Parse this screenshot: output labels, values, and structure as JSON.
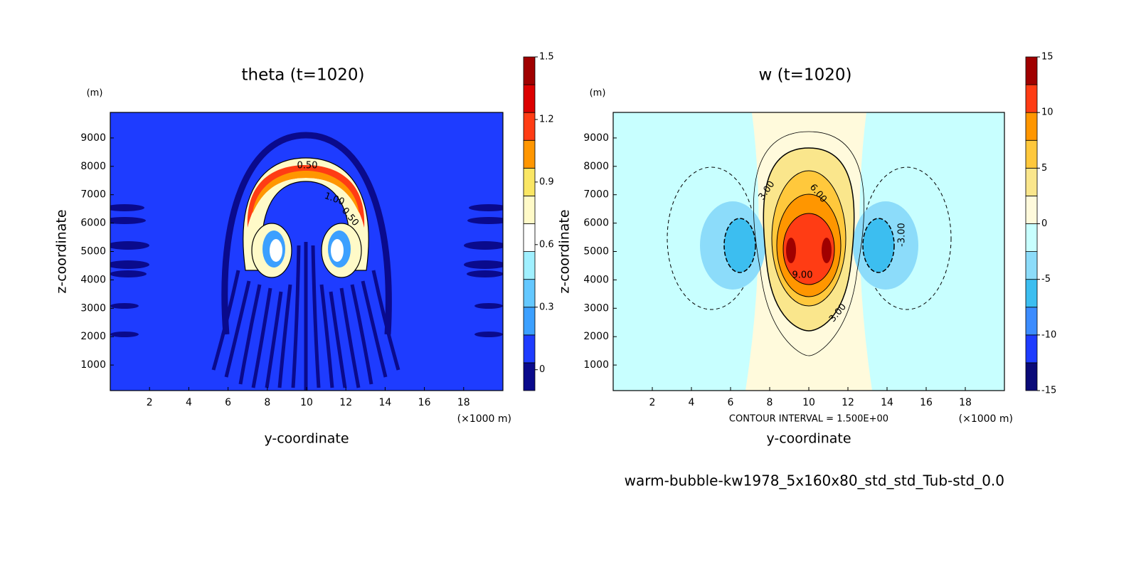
{
  "chart_data": [
    {
      "type": "contour",
      "title": "theta (t=1020)",
      "y_unit": "(m)",
      "x_unit": "(×1000 m)",
      "xlabel": "y-coordinate",
      "ylabel": "z-coordinate",
      "xlim": [
        0,
        20
      ],
      "xticks": [
        2,
        4,
        6,
        8,
        10,
        12,
        14,
        16,
        18
      ],
      "ylim": [
        100,
        9900
      ],
      "yticks": [
        1000,
        2000,
        3000,
        4000,
        5000,
        6000,
        7000,
        8000,
        9000
      ],
      "colorbar": {
        "lim": [
          -0.1,
          1.5
        ],
        "ticks": [
          0,
          0.3,
          0.6,
          0.9,
          1.2,
          1.5
        ],
        "colors": [
          "#0a0a8c",
          "#1e3cff",
          "#3ca0ff",
          "#64c8ff",
          "#a0f0ff",
          "#ffffff",
          "#fffac8",
          "#fae664",
          "#ff9600",
          "#ff3c14",
          "#dc0000",
          "#a00000"
        ]
      },
      "contour_labels": [
        "0.50",
        "1.00",
        "0.50"
      ]
    },
    {
      "type": "contour",
      "title": "w (t=1020)",
      "y_unit": "(m)",
      "x_unit": "(×1000 m)",
      "xlabel": "y-coordinate",
      "ylabel": "z-coordinate",
      "annotation": "CONTOUR INTERVAL = 1.500E+00",
      "xlim": [
        0,
        20
      ],
      "xticks": [
        2,
        4,
        6,
        8,
        10,
        12,
        14,
        16,
        18
      ],
      "ylim": [
        100,
        9900
      ],
      "yticks": [
        1000,
        2000,
        3000,
        4000,
        5000,
        6000,
        7000,
        8000,
        9000
      ],
      "colorbar": {
        "lim": [
          -15,
          15
        ],
        "ticks": [
          -15,
          -10,
          -5,
          0,
          5,
          10,
          15
        ],
        "colors": [
          "#0a0a78",
          "#1e3cff",
          "#3c8cff",
          "#3cbef0",
          "#8cdcfa",
          "#c8ffff",
          "#fffadc",
          "#fae68c",
          "#ffc83c",
          "#ff9600",
          "#ff3c14",
          "#a00000"
        ]
      },
      "contour_labels": [
        "3.00",
        "6.00",
        "9.00",
        "3.00",
        "-3.00"
      ]
    }
  ],
  "caption": "warm-bubble-kw1978_5x160x80_std_std_Tub-std_0.0"
}
